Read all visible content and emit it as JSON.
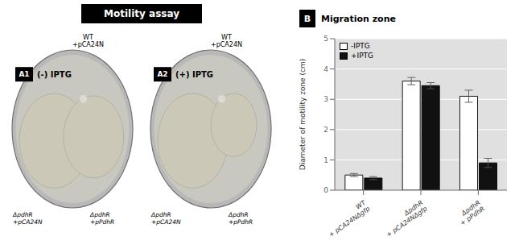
{
  "chart_data": {
    "type": "bar",
    "title": "Motility assay",
    "subtitle": "Migration zone",
    "ylabel": "Diameter of motility zone (cm)",
    "categories": [
      "WT\n+ pCA24NΔgfp",
      "ΔpdhR\n+ pCA24NΔgfp",
      "ΔpdhR\n+ pPdhR"
    ],
    "series": [
      {
        "name": "-IPTG",
        "color": "#ffffff",
        "values": [
          0.5,
          3.6,
          3.1
        ],
        "errors": [
          0.05,
          0.12,
          0.2
        ]
      },
      {
        "name": "+IPTG",
        "color": "#111111",
        "values": [
          0.4,
          3.45,
          0.9
        ],
        "errors": [
          0.05,
          0.1,
          0.15
        ]
      }
    ],
    "ylim": [
      0,
      5
    ],
    "yticks": [
      0,
      1,
      2,
      3,
      4,
      5
    ],
    "grid": true,
    "legend": "upper left",
    "annotations": [
      "A1",
      "(-) IPTG",
      "WT\n+pCA24N",
      "ΔpdhR\n+pCA24N",
      "ΔpdhR\n+pPdhR",
      "A2",
      "(+) IPTG",
      "WT\n+pCA24N",
      "ΔpdhR\n+pCA24N",
      "ΔpdhR\n+pPdhR",
      "B"
    ]
  }
}
